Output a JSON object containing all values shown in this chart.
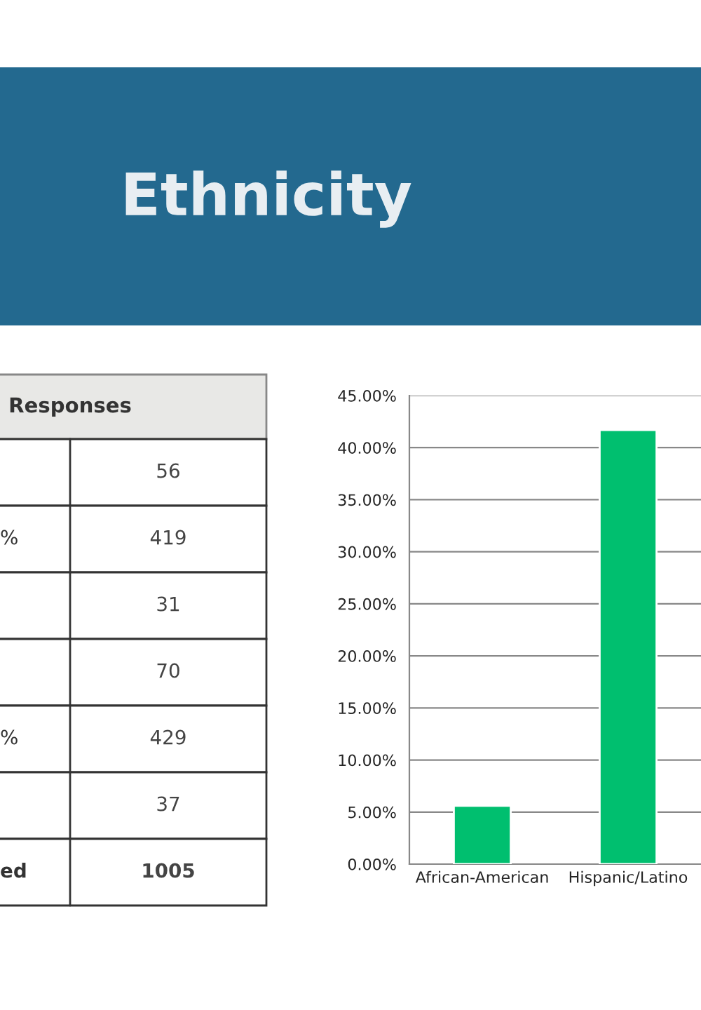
{
  "chart_data": [
    {
      "type": "other",
      "title": "Ethnicity",
      "annotations": [
        "Responses",
        "56",
        "419",
        "31",
        "70",
        "429",
        "37",
        "1005"
      ],
      "categories": [
        null,
        "%",
        null,
        null,
        "%",
        null,
        "ed"
      ]
    },
    {
      "type": "bar",
      "categories": [
        "African-American",
        "Hispanic/Latino"
      ],
      "values": [
        5.6,
        41.7
      ],
      "color": "#00bf6f",
      "ylim": [
        0,
        45
      ],
      "yticks": [
        {
          "value": 0,
          "label": "0.00%"
        },
        {
          "value": 5,
          "label": "5.00%"
        },
        {
          "value": 10,
          "label": "10.00%"
        },
        {
          "value": 15,
          "label": "15.00%"
        },
        {
          "value": 20,
          "label": "20.00%"
        },
        {
          "value": 25,
          "label": "25.00%"
        },
        {
          "value": 30,
          "label": "30.00%"
        },
        {
          "value": 35,
          "label": "35.00%"
        },
        {
          "value": 40,
          "label": "40.00%"
        },
        {
          "value": 45,
          "label": "45.00%"
        }
      ],
      "grid": "y"
    }
  ]
}
